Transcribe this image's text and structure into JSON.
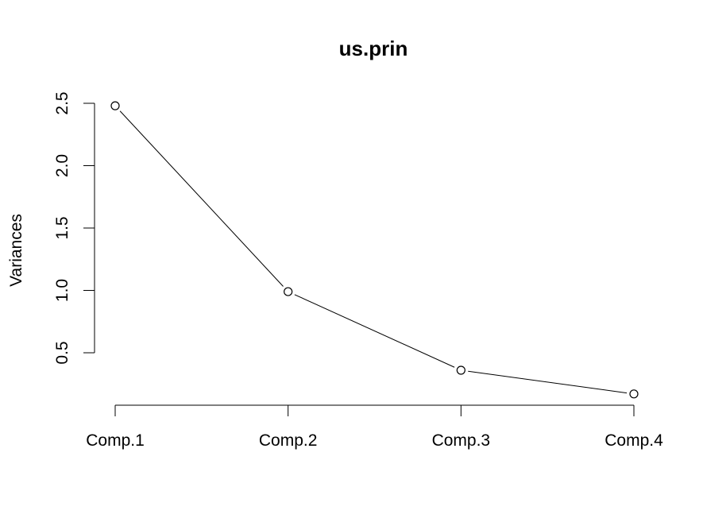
{
  "chart_data": {
    "type": "line",
    "title": "us.prin",
    "xlabel": "",
    "ylabel": "Variances",
    "categories": [
      "Comp.1",
      "Comp.2",
      "Comp.3",
      "Comp.4"
    ],
    "values": [
      2.48,
      0.99,
      0.36,
      0.17
    ],
    "yticks": [
      "0.5",
      "1.0",
      "1.5",
      "2.0",
      "2.5"
    ],
    "ylim": [
      0.1,
      2.6
    ],
    "grid": false,
    "legend": "none",
    "marker": "open-circle",
    "line_color": "#000000"
  }
}
